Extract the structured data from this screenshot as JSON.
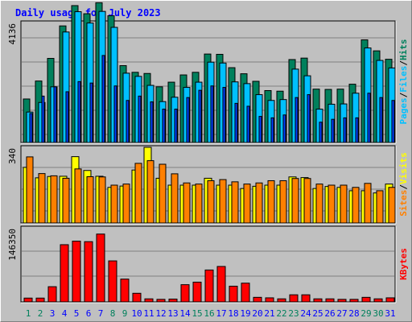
{
  "colors": {
    "hits": "#00805c",
    "files": "#00c0ff",
    "pages": "#0040ff",
    "visits": "#ffff00",
    "sites": "#ff8000",
    "kbytes": "#ff0000",
    "title": "#0000ff",
    "weekend_label": "#00805c",
    "weekday_label": "#0000ff"
  },
  "chart_data": [
    {
      "type": "bar",
      "title": "Daily usage for July 2023",
      "ymax_label": "4136",
      "ymax": 4136,
      "categories": [
        "1",
        "2",
        "3",
        "4",
        "5",
        "6",
        "7",
        "8",
        "9",
        "10",
        "11",
        "12",
        "13",
        "14",
        "15",
        "16",
        "17",
        "18",
        "19",
        "20",
        "21",
        "22",
        "23",
        "24",
        "25",
        "26",
        "27",
        "28",
        "29",
        "30",
        "31"
      ],
      "weekend_days": [
        "1",
        "2",
        "8",
        "9",
        "15",
        "16",
        "22",
        "23",
        "29",
        "30"
      ],
      "legend": {
        "hits": "Hits",
        "sep1": "/",
        "files": "Files",
        "sep2": "/",
        "pages": "Pages"
      },
      "series": [
        {
          "name": "Hits",
          "values": [
            1500,
            2120,
            2900,
            4020,
            4720,
            4440,
            4820,
            4370,
            2650,
            2420,
            2380,
            1920,
            2080,
            2330,
            2420,
            3050,
            3040,
            2580,
            2370,
            2110,
            1790,
            1770,
            2860,
            2910,
            1840,
            1830,
            1840,
            2010,
            3540,
            3160,
            2870
          ]
        },
        {
          "name": "Files",
          "values": [
            1050,
            1380,
            1920,
            3810,
            4510,
            4120,
            4520,
            3970,
            2390,
            2280,
            1970,
            1410,
            1560,
            1900,
            2080,
            2770,
            2740,
            2090,
            2030,
            1650,
            1450,
            1480,
            2530,
            2300,
            1150,
            1320,
            1330,
            1700,
            3260,
            2830,
            2570
          ]
        },
        {
          "name": "Pages",
          "values": [
            1000,
            1600,
            1920,
            1750,
            2100,
            2050,
            3000,
            1950,
            1450,
            1600,
            1400,
            1150,
            1150,
            1550,
            1800,
            1950,
            1900,
            1350,
            1250,
            900,
            850,
            950,
            1550,
            1650,
            700,
            800,
            850,
            850,
            1700,
            1550,
            1450
          ]
        }
      ]
    },
    {
      "type": "bar",
      "ymax_label": "340",
      "ymax": 340,
      "categories": [
        "1",
        "2",
        "3",
        "4",
        "5",
        "6",
        "7",
        "8",
        "9",
        "10",
        "11",
        "12",
        "13",
        "14",
        "15",
        "16",
        "17",
        "18",
        "19",
        "20",
        "21",
        "22",
        "23",
        "24",
        "25",
        "26",
        "27",
        "28",
        "29",
        "30",
        "31"
      ],
      "legend": {
        "sites": "Sites",
        "sep": "/",
        "visits": "Visits"
      },
      "series": [
        {
          "name": "Visits",
          "values": [
            250,
            203,
            209,
            210,
            298,
            236,
            210,
            160,
            166,
            238,
            340,
            201,
            170,
            170,
            170,
            201,
            170,
            170,
            155,
            165,
            170,
            170,
            207,
            204,
            155,
            164,
            160,
            145,
            145,
            135,
            175
          ]
        },
        {
          "name": "Sites",
          "values": [
            297,
            222,
            212,
            201,
            243,
            208,
            207,
            170,
            175,
            268,
            280,
            264,
            221,
            180,
            175,
            190,
            195,
            185,
            175,
            180,
            190,
            190,
            200,
            200,
            175,
            170,
            170,
            160,
            178,
            145,
            160
          ]
        }
      ]
    },
    {
      "type": "bar",
      "ymax_label": "146350",
      "ymax": 146350,
      "categories": [
        "1",
        "2",
        "3",
        "4",
        "5",
        "6",
        "7",
        "8",
        "9",
        "10",
        "11",
        "12",
        "13",
        "14",
        "15",
        "16",
        "17",
        "18",
        "19",
        "20",
        "21",
        "22",
        "23",
        "24",
        "25",
        "26",
        "27",
        "28",
        "29",
        "30",
        "31"
      ],
      "legend": {
        "kbytes": "KBytes"
      },
      "series": [
        {
          "name": "KBytes",
          "values": [
            7500,
            7500,
            30000,
            113000,
            120000,
            119000,
            134000,
            81000,
            45000,
            17000,
            6000,
            5000,
            5500,
            34000,
            39000,
            63000,
            70000,
            31000,
            37000,
            9000,
            8000,
            6000,
            14000,
            14000,
            6000,
            6000,
            5000,
            5000,
            9000,
            6000,
            8000
          ]
        }
      ]
    }
  ]
}
